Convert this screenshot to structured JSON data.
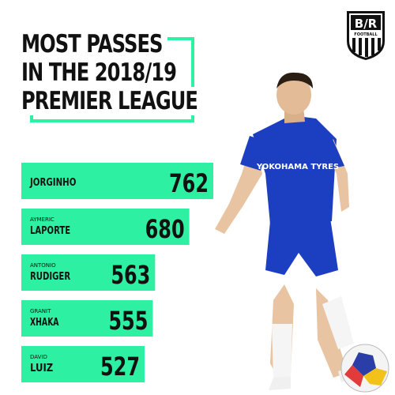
{
  "title": {
    "line1": "MOST PASSES",
    "line2": "IN THE 2018/19",
    "line3": "PREMIER LEAGUE"
  },
  "logo": {
    "top": "B/R",
    "bottom": "FOOTBALL"
  },
  "colors": {
    "accent": "#2ef0a2",
    "kit_blue": "#1c3fc1",
    "text": "#111111"
  },
  "chart_data": {
    "type": "bar",
    "orientation": "horizontal",
    "categories": [
      "JORGINHO",
      "AYMERIC LAPORTE",
      "ANTONIO RUDIGER",
      "GRANIT XHAKA",
      "DAVID LUIZ"
    ],
    "first_names": [
      "",
      "AYMERIC",
      "ANTONIO",
      "GRANIT",
      "DAVID"
    ],
    "last_names": [
      "JORGINHO",
      "LAPORTE",
      "RUDIGER",
      "XHAKA",
      "LUIZ"
    ],
    "values": [
      762,
      680,
      563,
      555,
      527
    ]
  },
  "player_photo": {
    "shirt_sponsor": "YOKOHAMA TYRES"
  }
}
